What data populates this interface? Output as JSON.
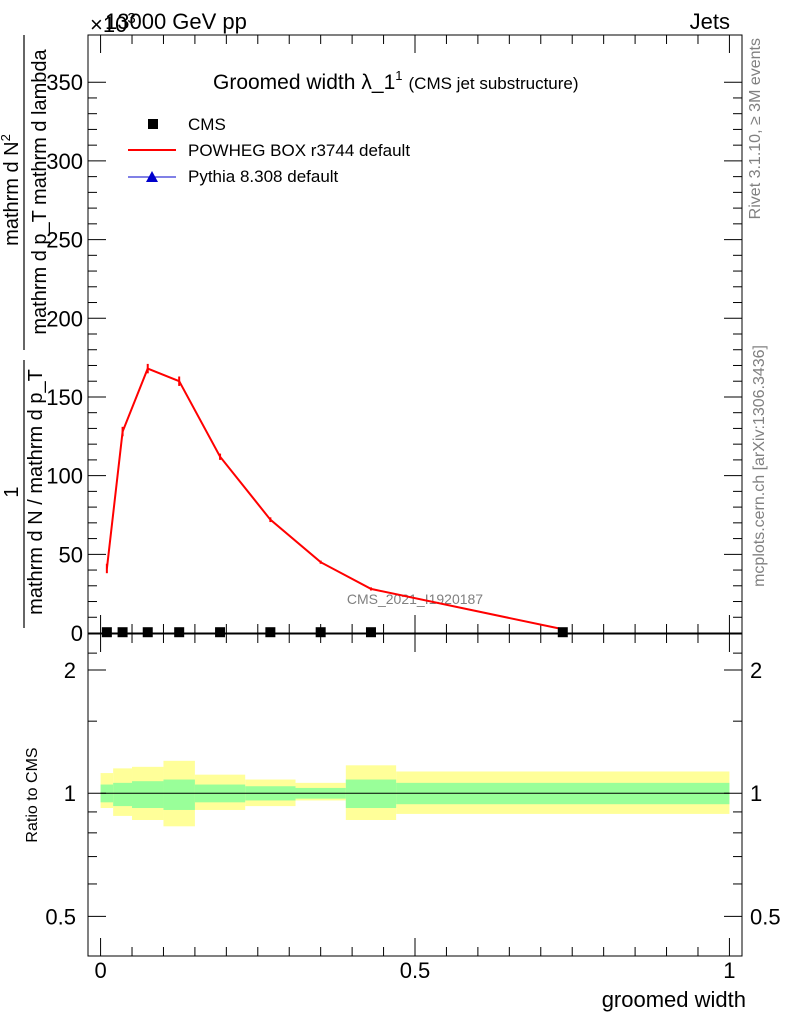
{
  "header": {
    "energy_label": "13000 GeV pp",
    "category_label": "Jets",
    "exponent_label": "×10",
    "exponent_power": "3"
  },
  "side_labels": {
    "rivet": "Rivet 3.1.10, ≥ 3M events",
    "mcplots": "mcplots.cern.ch [arXiv:1306.3436]"
  },
  "chart_data": [
    {
      "type": "line",
      "title": "Groomed width",
      "title_symbol": "λ_1",
      "title_sup": "1",
      "subtitle": "(CMS jet substructure)",
      "watermark": "CMS_2021_I1920187",
      "ylabel_numerator": "mathrm d N",
      "ylabel_numerator_super": "2",
      "ylabel_denominator": "mathrm d p_T mathrm d lambda",
      "ylabel_prefactor_num": "1",
      "ylabel_prefactor_den": "mathrm d N / mathrm d p_T",
      "xlim": [
        -0.02,
        1.02
      ],
      "ylim": [
        0,
        380
      ],
      "yticks": [
        0,
        50,
        100,
        150,
        200,
        250,
        300,
        350
      ],
      "ytick_labels": [
        "0",
        "50",
        "100",
        "150",
        "200",
        "250",
        "300",
        "350"
      ],
      "legend_position": "top-left",
      "legend": [
        {
          "name": "CMS",
          "marker": "square",
          "color": "#000000"
        },
        {
          "name": "POWHEG BOX r3744 default",
          "marker": "line",
          "color": "#ff0000"
        },
        {
          "name": "Pythia 8.308 default",
          "marker": "triangle",
          "color": "#0000cc"
        }
      ],
      "series": [
        {
          "name": "CMS",
          "x": [
            0.01,
            0.035,
            0.075,
            0.125,
            0.19,
            0.27,
            0.35,
            0.43,
            0.735
          ],
          "values": [
            0.5,
            0.5,
            0.5,
            0.5,
            0.5,
            0.5,
            0.5,
            0.5,
            0.5
          ]
        },
        {
          "name": "POWHEG BOX r3744 default",
          "x": [
            0.01,
            0.035,
            0.075,
            0.125,
            0.19,
            0.27,
            0.35,
            0.43,
            0.74
          ],
          "values": [
            41,
            128,
            168,
            160,
            112,
            72,
            45,
            28,
            2
          ],
          "errors": [
            3,
            3,
            3,
            3,
            2,
            1.5,
            1,
            1,
            0.5
          ]
        }
      ]
    },
    {
      "type": "area",
      "ylabel": "Ratio to CMS",
      "xlabel": "groomed width",
      "xlim": [
        -0.02,
        1.02
      ],
      "ylim": [
        0.4,
        2.45
      ],
      "scale": "log",
      "yticks": [
        0.5,
        1,
        2
      ],
      "ytick_labels": [
        "0.5",
        "1",
        "2"
      ],
      "xticks": [
        0,
        0.5,
        1
      ],
      "xtick_labels": [
        "0",
        "0.5",
        "1"
      ],
      "reference_line": 1,
      "bins": [
        {
          "x0": 0.0,
          "x1": 0.02,
          "inner": [
            0.95,
            1.05
          ],
          "outer": [
            0.92,
            1.12
          ]
        },
        {
          "x0": 0.02,
          "x1": 0.05,
          "inner": [
            0.93,
            1.06
          ],
          "outer": [
            0.88,
            1.15
          ]
        },
        {
          "x0": 0.05,
          "x1": 0.1,
          "inner": [
            0.92,
            1.07
          ],
          "outer": [
            0.86,
            1.16
          ]
        },
        {
          "x0": 0.1,
          "x1": 0.15,
          "inner": [
            0.91,
            1.08
          ],
          "outer": [
            0.83,
            1.2
          ]
        },
        {
          "x0": 0.15,
          "x1": 0.23,
          "inner": [
            0.95,
            1.05
          ],
          "outer": [
            0.91,
            1.11
          ]
        },
        {
          "x0": 0.23,
          "x1": 0.31,
          "inner": [
            0.96,
            1.04
          ],
          "outer": [
            0.93,
            1.08
          ]
        },
        {
          "x0": 0.31,
          "x1": 0.39,
          "inner": [
            0.97,
            1.03
          ],
          "outer": [
            0.96,
            1.06
          ]
        },
        {
          "x0": 0.39,
          "x1": 0.47,
          "inner": [
            0.92,
            1.08
          ],
          "outer": [
            0.86,
            1.17
          ]
        },
        {
          "x0": 0.47,
          "x1": 1.0,
          "inner": [
            0.94,
            1.06
          ],
          "outer": [
            0.89,
            1.13
          ]
        }
      ],
      "colors": {
        "inner": "#99ff99",
        "outer": "#ffff99"
      }
    }
  ]
}
